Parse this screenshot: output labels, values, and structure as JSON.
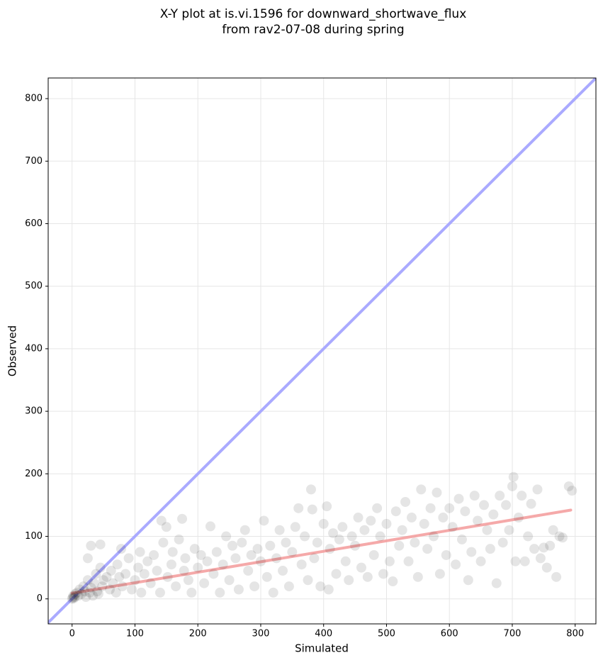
{
  "chart_data": {
    "type": "scatter",
    "title": "X-Y plot at is.vi.1596 for downward_shortwave_flux",
    "subtitle": "from rav2-07-08 during spring",
    "xlabel": "Simulated",
    "ylabel": "Observed",
    "xlim": [
      -38,
      833
    ],
    "ylim": [
      -40,
      833
    ],
    "xticks": [
      0,
      100,
      200,
      300,
      400,
      500,
      600,
      700,
      800
    ],
    "yticks": [
      0,
      100,
      200,
      300,
      400,
      500,
      600,
      700,
      800
    ],
    "grid": true,
    "color": "#000000",
    "alpha": 0.1,
    "x": [
      0,
      1,
      2,
      3,
      5,
      4,
      8,
      10,
      12,
      15,
      18,
      20,
      22,
      25,
      28,
      30,
      33,
      35,
      38,
      40,
      42,
      45,
      48,
      50,
      25,
      30,
      45,
      55,
      60,
      62,
      65,
      70,
      72,
      75,
      78,
      80,
      85,
      90,
      95,
      100,
      105,
      108,
      110,
      115,
      120,
      125,
      130,
      135,
      140,
      142,
      145,
      150,
      152,
      158,
      160,
      165,
      170,
      175,
      178,
      180,
      185,
      190,
      195,
      200,
      205,
      210,
      215,
      220,
      225,
      230,
      235,
      240,
      245,
      250,
      255,
      260,
      265,
      270,
      275,
      280,
      285,
      290,
      295,
      300,
      305,
      310,
      315,
      320,
      325,
      330,
      335,
      340,
      345,
      350,
      355,
      360,
      365,
      370,
      375,
      380,
      382,
      385,
      390,
      395,
      400,
      405,
      408,
      410,
      415,
      420,
      425,
      430,
      435,
      440,
      445,
      450,
      455,
      460,
      465,
      470,
      475,
      480,
      485,
      490,
      495,
      500,
      505,
      510,
      515,
      520,
      525,
      530,
      535,
      540,
      545,
      550,
      555,
      560,
      565,
      570,
      575,
      580,
      585,
      590,
      595,
      600,
      605,
      610,
      615,
      620,
      625,
      630,
      635,
      640,
      645,
      650,
      655,
      660,
      665,
      670,
      675,
      680,
      685,
      690,
      695,
      700,
      702,
      705,
      710,
      715,
      720,
      725,
      730,
      735,
      740,
      745,
      750,
      755,
      760,
      765,
      770,
      775,
      780,
      790,
      795
    ],
    "y": [
      0,
      2,
      5,
      1,
      8,
      3,
      10,
      5,
      15,
      8,
      20,
      12,
      3,
      30,
      10,
      18,
      5,
      25,
      40,
      12,
      8,
      50,
      20,
      30,
      65,
      85,
      87,
      35,
      15,
      45,
      25,
      10,
      55,
      35,
      80,
      20,
      40,
      65,
      15,
      30,
      50,
      75,
      10,
      40,
      60,
      25,
      70,
      45,
      10,
      125,
      90,
      115,
      35,
      55,
      75,
      20,
      95,
      128,
      45,
      65,
      30,
      10,
      80,
      50,
      70,
      25,
      60,
      116,
      40,
      75,
      10,
      55,
      100,
      30,
      85,
      65,
      15,
      90,
      110,
      45,
      70,
      20,
      80,
      60,
      125,
      35,
      85,
      10,
      65,
      110,
      45,
      90,
      20,
      75,
      115,
      145,
      55,
      100,
      30,
      175,
      143,
      65,
      90,
      20,
      120,
      148,
      15,
      80,
      105,
      40,
      95,
      115,
      60,
      30,
      100,
      85,
      130,
      50,
      110,
      35,
      125,
      70,
      145,
      100,
      40,
      120,
      60,
      28,
      140,
      85,
      110,
      155,
      60,
      130,
      90,
      35,
      175,
      120,
      80,
      145,
      100,
      170,
      40,
      130,
      70,
      145,
      115,
      55,
      160,
      95,
      140,
      30,
      75,
      165,
      125,
      60,
      150,
      110,
      80,
      135,
      25,
      165,
      90,
      150,
      110,
      180,
      195,
      60,
      130,
      165,
      60,
      100,
      152,
      80,
      175,
      65,
      82,
      50,
      85,
      110,
      35,
      100,
      98,
      180,
      173
    ],
    "lines": [
      {
        "x": [
          -38,
          833
        ],
        "y": [
          -38,
          833
        ],
        "color": "#aaaaff"
      },
      {
        "x": [
          0,
          793
        ],
        "y": [
          9,
          142
        ],
        "color": "#f4a0a0"
      }
    ]
  }
}
